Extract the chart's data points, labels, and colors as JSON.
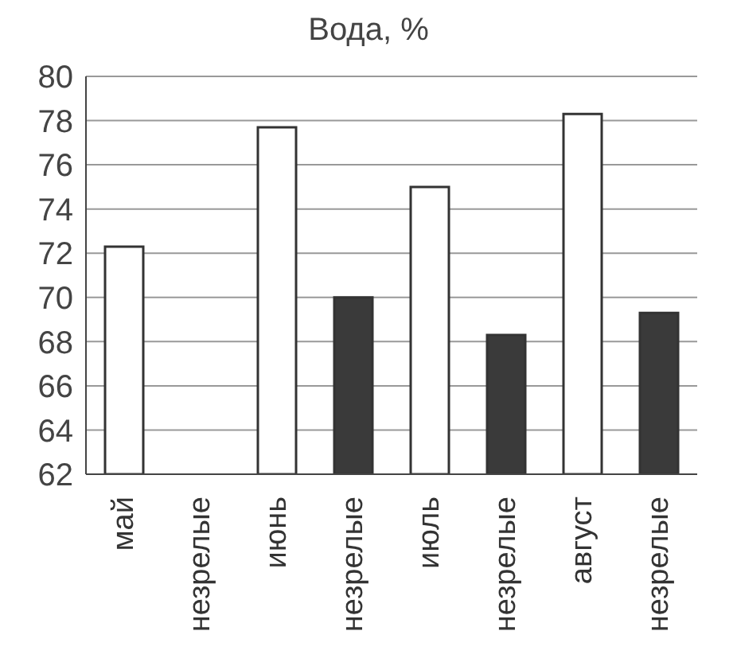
{
  "chart_data": {
    "type": "bar",
    "title": "Вода, %",
    "categories": [
      "май",
      "незрелые",
      "июнь",
      "незрелые",
      "июль",
      "незрелые",
      "август",
      "незрелые"
    ],
    "values": [
      72.3,
      null,
      77.7,
      70,
      75,
      68.3,
      78.3,
      69.3
    ],
    "colors": [
      "#ffffff",
      "#3a3a3a",
      "#ffffff",
      "#3a3a3a",
      "#ffffff",
      "#3a3a3a",
      "#ffffff",
      "#3a3a3a"
    ],
    "ylim": [
      62,
      80
    ],
    "yticks": [
      62,
      64,
      66,
      68,
      70,
      72,
      74,
      76,
      78,
      80
    ],
    "grid": "y"
  }
}
